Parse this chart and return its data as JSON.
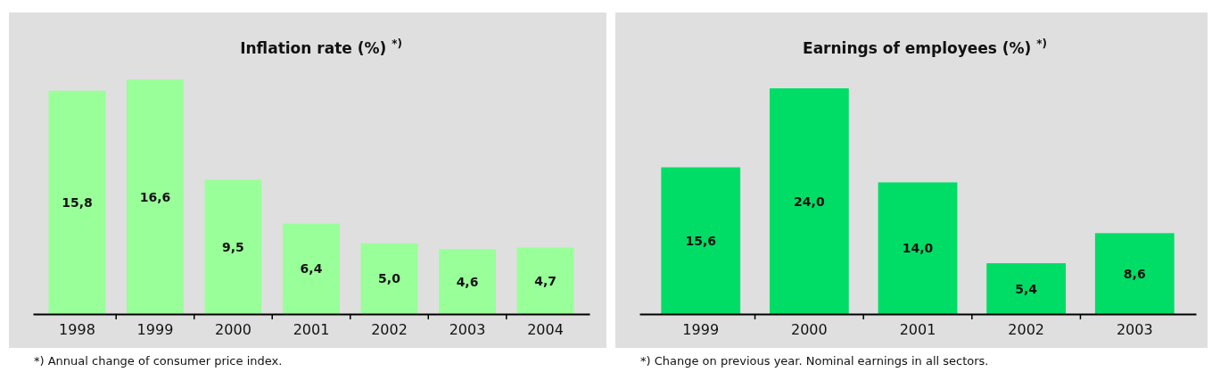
{
  "chart_data": [
    {
      "type": "bar",
      "title": "Inflation rate (%) $^{*)}$",
      "categories": [
        "1998",
        "1999",
        "2000",
        "2001",
        "2002",
        "2003",
        "2004"
      ],
      "values": [
        15.8,
        16.6,
        9.5,
        6.4,
        5.0,
        4.6,
        4.7
      ],
      "value_labels": [
        "15,8",
        "16,6",
        "9,5",
        "6,4",
        "5,0",
        "4,6",
        "4,7"
      ],
      "color": "#99ff99",
      "annotations": [
        "*) Annual change of  consumer price index."
      ]
    },
    {
      "type": "bar",
      "title": "Earnings of employees (%) $^{*)}$",
      "categories": [
        "1999",
        "2000",
        "2001",
        "2002",
        "2003"
      ],
      "values": [
        15.6,
        24.0,
        14.0,
        5.4,
        8.6
      ],
      "value_labels": [
        "15,6",
        "24,0",
        "14,0",
        "5,4",
        "8,6"
      ],
      "color": "#00dd66",
      "annotations": [
        "*) Change on previous year. Nominal earnings in all sectors."
      ]
    }
  ]
}
